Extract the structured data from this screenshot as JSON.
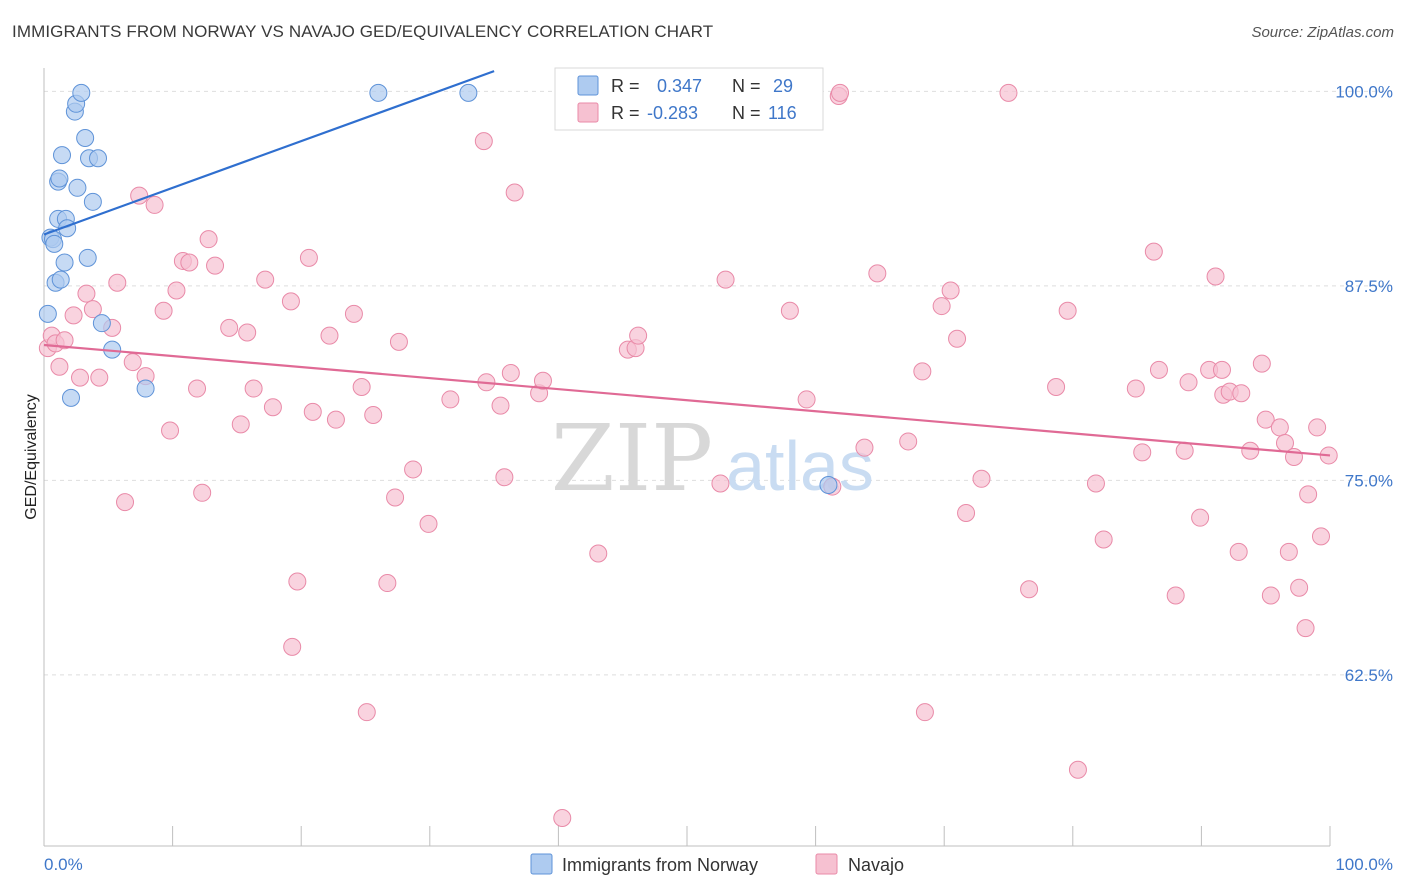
{
  "header": {
    "title": "IMMIGRANTS FROM NORWAY VS NAVAJO GED/EQUIVALENCY CORRELATION CHART",
    "source": "Source: ZipAtlas.com"
  },
  "watermark": {
    "zip": "ZIP",
    "atlas": "atlas"
  },
  "colors": {
    "norway_fill": "#aecbf0",
    "norway_stroke": "#5f93d8",
    "norway_line": "#2f6fcf",
    "navajo_fill": "#f6c1d1",
    "navajo_stroke": "#e98aa8",
    "navajo_line": "#e06a95",
    "axis_text": "#3f77c9",
    "grid": "#dedede"
  },
  "legend_box": {
    "rows": [
      {
        "r_label": "R =",
        "r_value": "0.347",
        "n_label": "N =",
        "n_value": "29",
        "series": "norway"
      },
      {
        "r_label": "R =",
        "r_value": "-0.283",
        "n_label": "N =",
        "n_value": "116",
        "series": "navajo"
      }
    ]
  },
  "bottom_legend": [
    {
      "label": "Immigrants from Norway",
      "series": "norway"
    },
    {
      "label": "Navajo",
      "series": "navajo"
    }
  ],
  "chart_data": {
    "type": "scatter",
    "title": "IMMIGRANTS FROM NORWAY VS NAVAJO GED/EQUIVALENCY CORRELATION CHART",
    "xlabel": "",
    "ylabel": "GED/Equivalency",
    "xlim": [
      0,
      100
    ],
    "ylim": [
      51.5,
      101.5
    ],
    "x_tick_labels": [
      "0.0%",
      "100.0%"
    ],
    "y_ticks": [
      {
        "value": 100,
        "label": "100.0%"
      },
      {
        "value": 87.5,
        "label": "87.5%"
      },
      {
        "value": 75,
        "label": "75.0%"
      },
      {
        "value": 62.5,
        "label": "62.5%"
      }
    ],
    "series": [
      {
        "name": "Immigrants from Norway",
        "key": "norway",
        "r": 0.347,
        "n": 29,
        "trend": {
          "x": [
            0,
            35
          ],
          "y": [
            90.8,
            101.3
          ]
        },
        "points": [
          [
            0.3,
            85.7
          ],
          [
            0.5,
            90.6
          ],
          [
            0.7,
            90.5
          ],
          [
            0.8,
            90.2
          ],
          [
            0.9,
            87.7
          ],
          [
            1.1,
            91.8
          ],
          [
            1.1,
            94.2
          ],
          [
            1.2,
            94.4
          ],
          [
            1.3,
            87.9
          ],
          [
            1.4,
            95.9
          ],
          [
            1.6,
            89.0
          ],
          [
            1.7,
            91.8
          ],
          [
            1.8,
            91.2
          ],
          [
            2.1,
            80.3
          ],
          [
            2.4,
            98.7
          ],
          [
            2.5,
            99.2
          ],
          [
            2.6,
            93.8
          ],
          [
            2.9,
            99.9
          ],
          [
            3.2,
            97.0
          ],
          [
            3.4,
            89.3
          ],
          [
            3.5,
            95.7
          ],
          [
            3.8,
            92.9
          ],
          [
            4.2,
            95.7
          ],
          [
            4.5,
            85.1
          ],
          [
            5.3,
            83.4
          ],
          [
            7.9,
            80.9
          ],
          [
            26.0,
            99.9
          ],
          [
            33.0,
            99.9
          ],
          [
            61.0,
            74.7
          ]
        ]
      },
      {
        "name": "Navajo",
        "key": "navajo",
        "r": -0.283,
        "n": 116,
        "trend": {
          "x": [
            0,
            100
          ],
          "y": [
            83.7,
            76.6
          ]
        },
        "points": [
          [
            0.3,
            83.5
          ],
          [
            0.6,
            84.3
          ],
          [
            0.9,
            83.8
          ],
          [
            1.2,
            82.3
          ],
          [
            1.6,
            84.0
          ],
          [
            2.3,
            85.6
          ],
          [
            2.8,
            81.6
          ],
          [
            3.3,
            87.0
          ],
          [
            3.8,
            86.0
          ],
          [
            4.3,
            81.6
          ],
          [
            5.3,
            84.8
          ],
          [
            5.7,
            87.7
          ],
          [
            6.3,
            73.6
          ],
          [
            6.9,
            82.6
          ],
          [
            7.4,
            93.3
          ],
          [
            7.9,
            81.7
          ],
          [
            8.6,
            92.7
          ],
          [
            9.3,
            85.9
          ],
          [
            9.8,
            78.2
          ],
          [
            10.3,
            87.2
          ],
          [
            10.8,
            89.1
          ],
          [
            11.3,
            89.0
          ],
          [
            11.9,
            80.9
          ],
          [
            12.3,
            74.2
          ],
          [
            12.8,
            90.5
          ],
          [
            13.3,
            88.8
          ],
          [
            14.4,
            84.8
          ],
          [
            15.3,
            78.6
          ],
          [
            15.8,
            84.5
          ],
          [
            16.3,
            80.9
          ],
          [
            17.2,
            87.9
          ],
          [
            17.8,
            79.7
          ],
          [
            19.2,
            86.5
          ],
          [
            19.3,
            64.3
          ],
          [
            19.7,
            68.5
          ],
          [
            20.6,
            89.3
          ],
          [
            20.9,
            79.4
          ],
          [
            22.2,
            84.3
          ],
          [
            22.7,
            78.9
          ],
          [
            24.1,
            85.7
          ],
          [
            24.7,
            81.0
          ],
          [
            25.1,
            60.1
          ],
          [
            25.6,
            79.2
          ],
          [
            26.7,
            68.4
          ],
          [
            27.3,
            73.9
          ],
          [
            27.6,
            83.9
          ],
          [
            28.7,
            75.7
          ],
          [
            29.9,
            72.2
          ],
          [
            31.6,
            80.2
          ],
          [
            34.2,
            96.8
          ],
          [
            34.4,
            81.3
          ],
          [
            35.5,
            79.8
          ],
          [
            35.8,
            75.2
          ],
          [
            36.3,
            81.9
          ],
          [
            36.6,
            93.5
          ],
          [
            38.5,
            80.6
          ],
          [
            38.8,
            81.4
          ],
          [
            40.3,
            53.3
          ],
          [
            43.1,
            70.3
          ],
          [
            45.4,
            83.4
          ],
          [
            46.0,
            83.5
          ],
          [
            46.2,
            84.3
          ],
          [
            52.4,
            99.9
          ],
          [
            52.6,
            74.8
          ],
          [
            53.0,
            87.9
          ],
          [
            58.0,
            85.9
          ],
          [
            59.3,
            80.2
          ],
          [
            61.3,
            74.6
          ],
          [
            61.8,
            99.7
          ],
          [
            61.9,
            99.9
          ],
          [
            63.8,
            77.1
          ],
          [
            64.8,
            88.3
          ],
          [
            67.2,
            77.5
          ],
          [
            68.3,
            82.0
          ],
          [
            68.5,
            60.1
          ],
          [
            69.8,
            86.2
          ],
          [
            70.5,
            87.2
          ],
          [
            71.0,
            84.1
          ],
          [
            71.7,
            72.9
          ],
          [
            72.9,
            75.1
          ],
          [
            75.0,
            99.9
          ],
          [
            76.6,
            68.0
          ],
          [
            78.7,
            81.0
          ],
          [
            79.6,
            85.9
          ],
          [
            80.4,
            56.4
          ],
          [
            81.8,
            74.8
          ],
          [
            82.4,
            71.2
          ],
          [
            84.9,
            80.9
          ],
          [
            85.4,
            76.8
          ],
          [
            86.3,
            89.7
          ],
          [
            86.7,
            82.1
          ],
          [
            88.0,
            67.6
          ],
          [
            88.7,
            76.9
          ],
          [
            89.0,
            81.3
          ],
          [
            89.9,
            72.6
          ],
          [
            90.6,
            82.1
          ],
          [
            91.1,
            88.1
          ],
          [
            91.6,
            82.1
          ],
          [
            91.7,
            80.5
          ],
          [
            92.2,
            80.7
          ],
          [
            92.9,
            70.4
          ],
          [
            93.1,
            80.6
          ],
          [
            93.8,
            76.9
          ],
          [
            94.7,
            82.5
          ],
          [
            95.0,
            78.9
          ],
          [
            95.4,
            67.6
          ],
          [
            96.1,
            78.4
          ],
          [
            96.5,
            77.4
          ],
          [
            96.8,
            70.4
          ],
          [
            97.2,
            76.5
          ],
          [
            97.6,
            68.1
          ],
          [
            98.1,
            65.5
          ],
          [
            98.3,
            74.1
          ],
          [
            99.0,
            78.4
          ],
          [
            99.3,
            71.4
          ],
          [
            99.9,
            76.6
          ]
        ]
      }
    ]
  }
}
